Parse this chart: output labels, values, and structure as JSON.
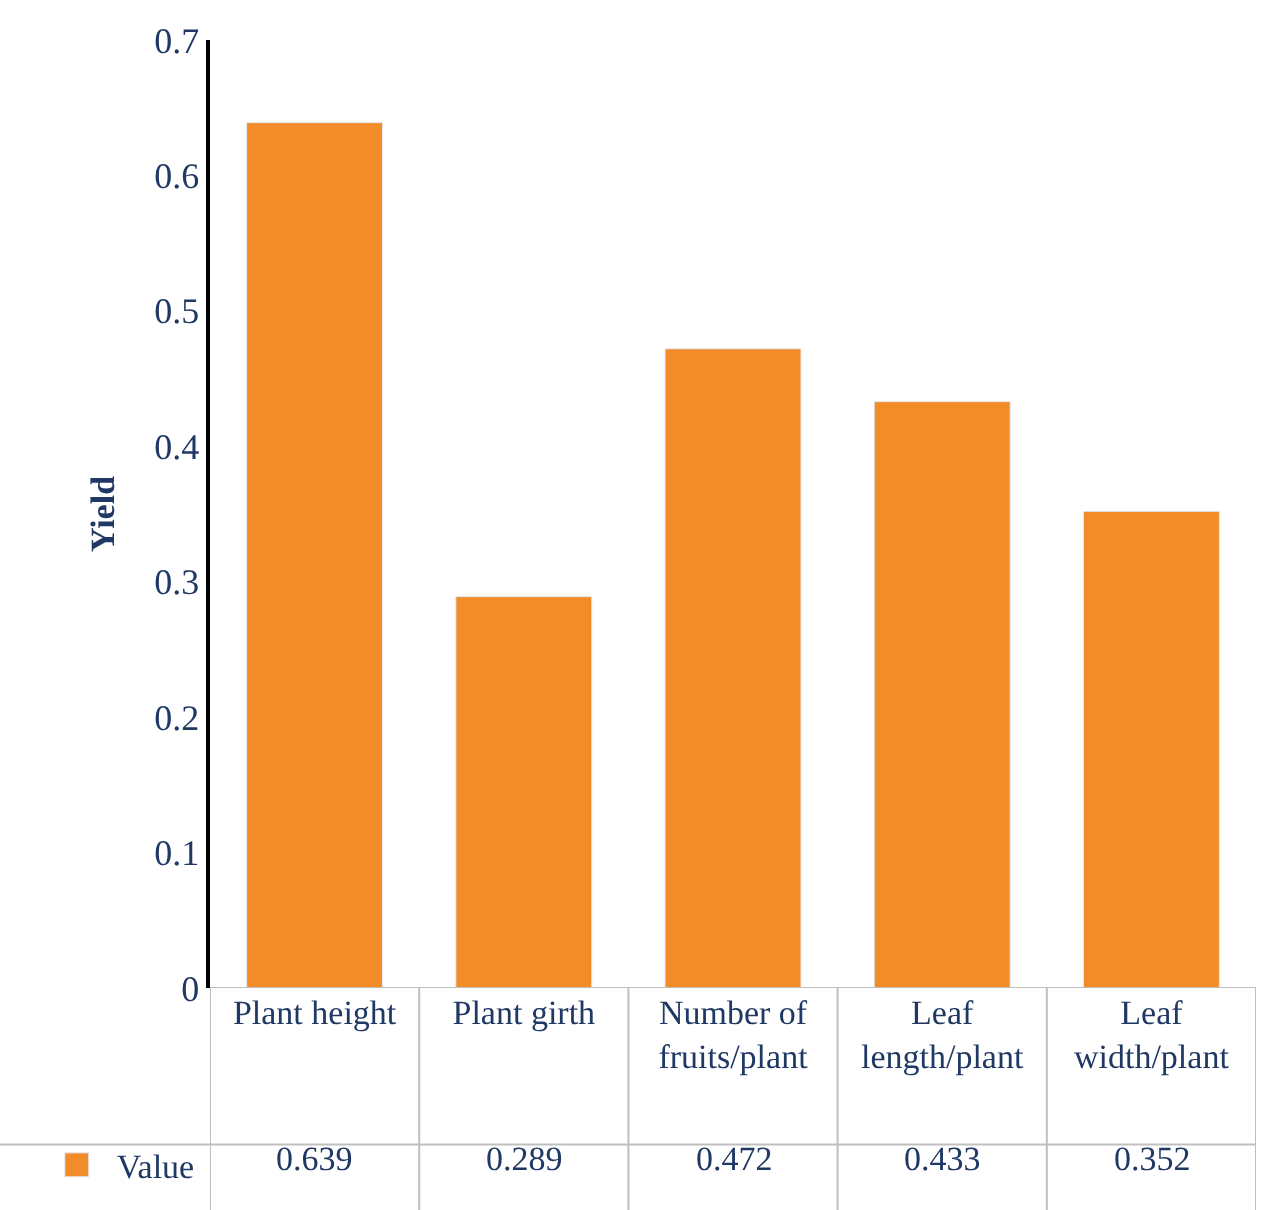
{
  "chart_data": {
    "type": "bar",
    "ylabel": "Yield",
    "categories": [
      "Plant height",
      "Plant girth",
      "Number of fruits/plant",
      "Leaf length/plant",
      "Leaf width/plant"
    ],
    "series": [
      {
        "name": "Value",
        "color": "#f28c28",
        "values": [
          0.639,
          0.289,
          0.472,
          0.433,
          0.352
        ]
      }
    ],
    "ylim": [
      0,
      0.7
    ],
    "yticks": [
      0,
      0.1,
      0.2,
      0.3,
      0.4,
      0.5,
      0.6,
      0.7
    ],
    "legend": "bottom left",
    "data_labels": true
  }
}
